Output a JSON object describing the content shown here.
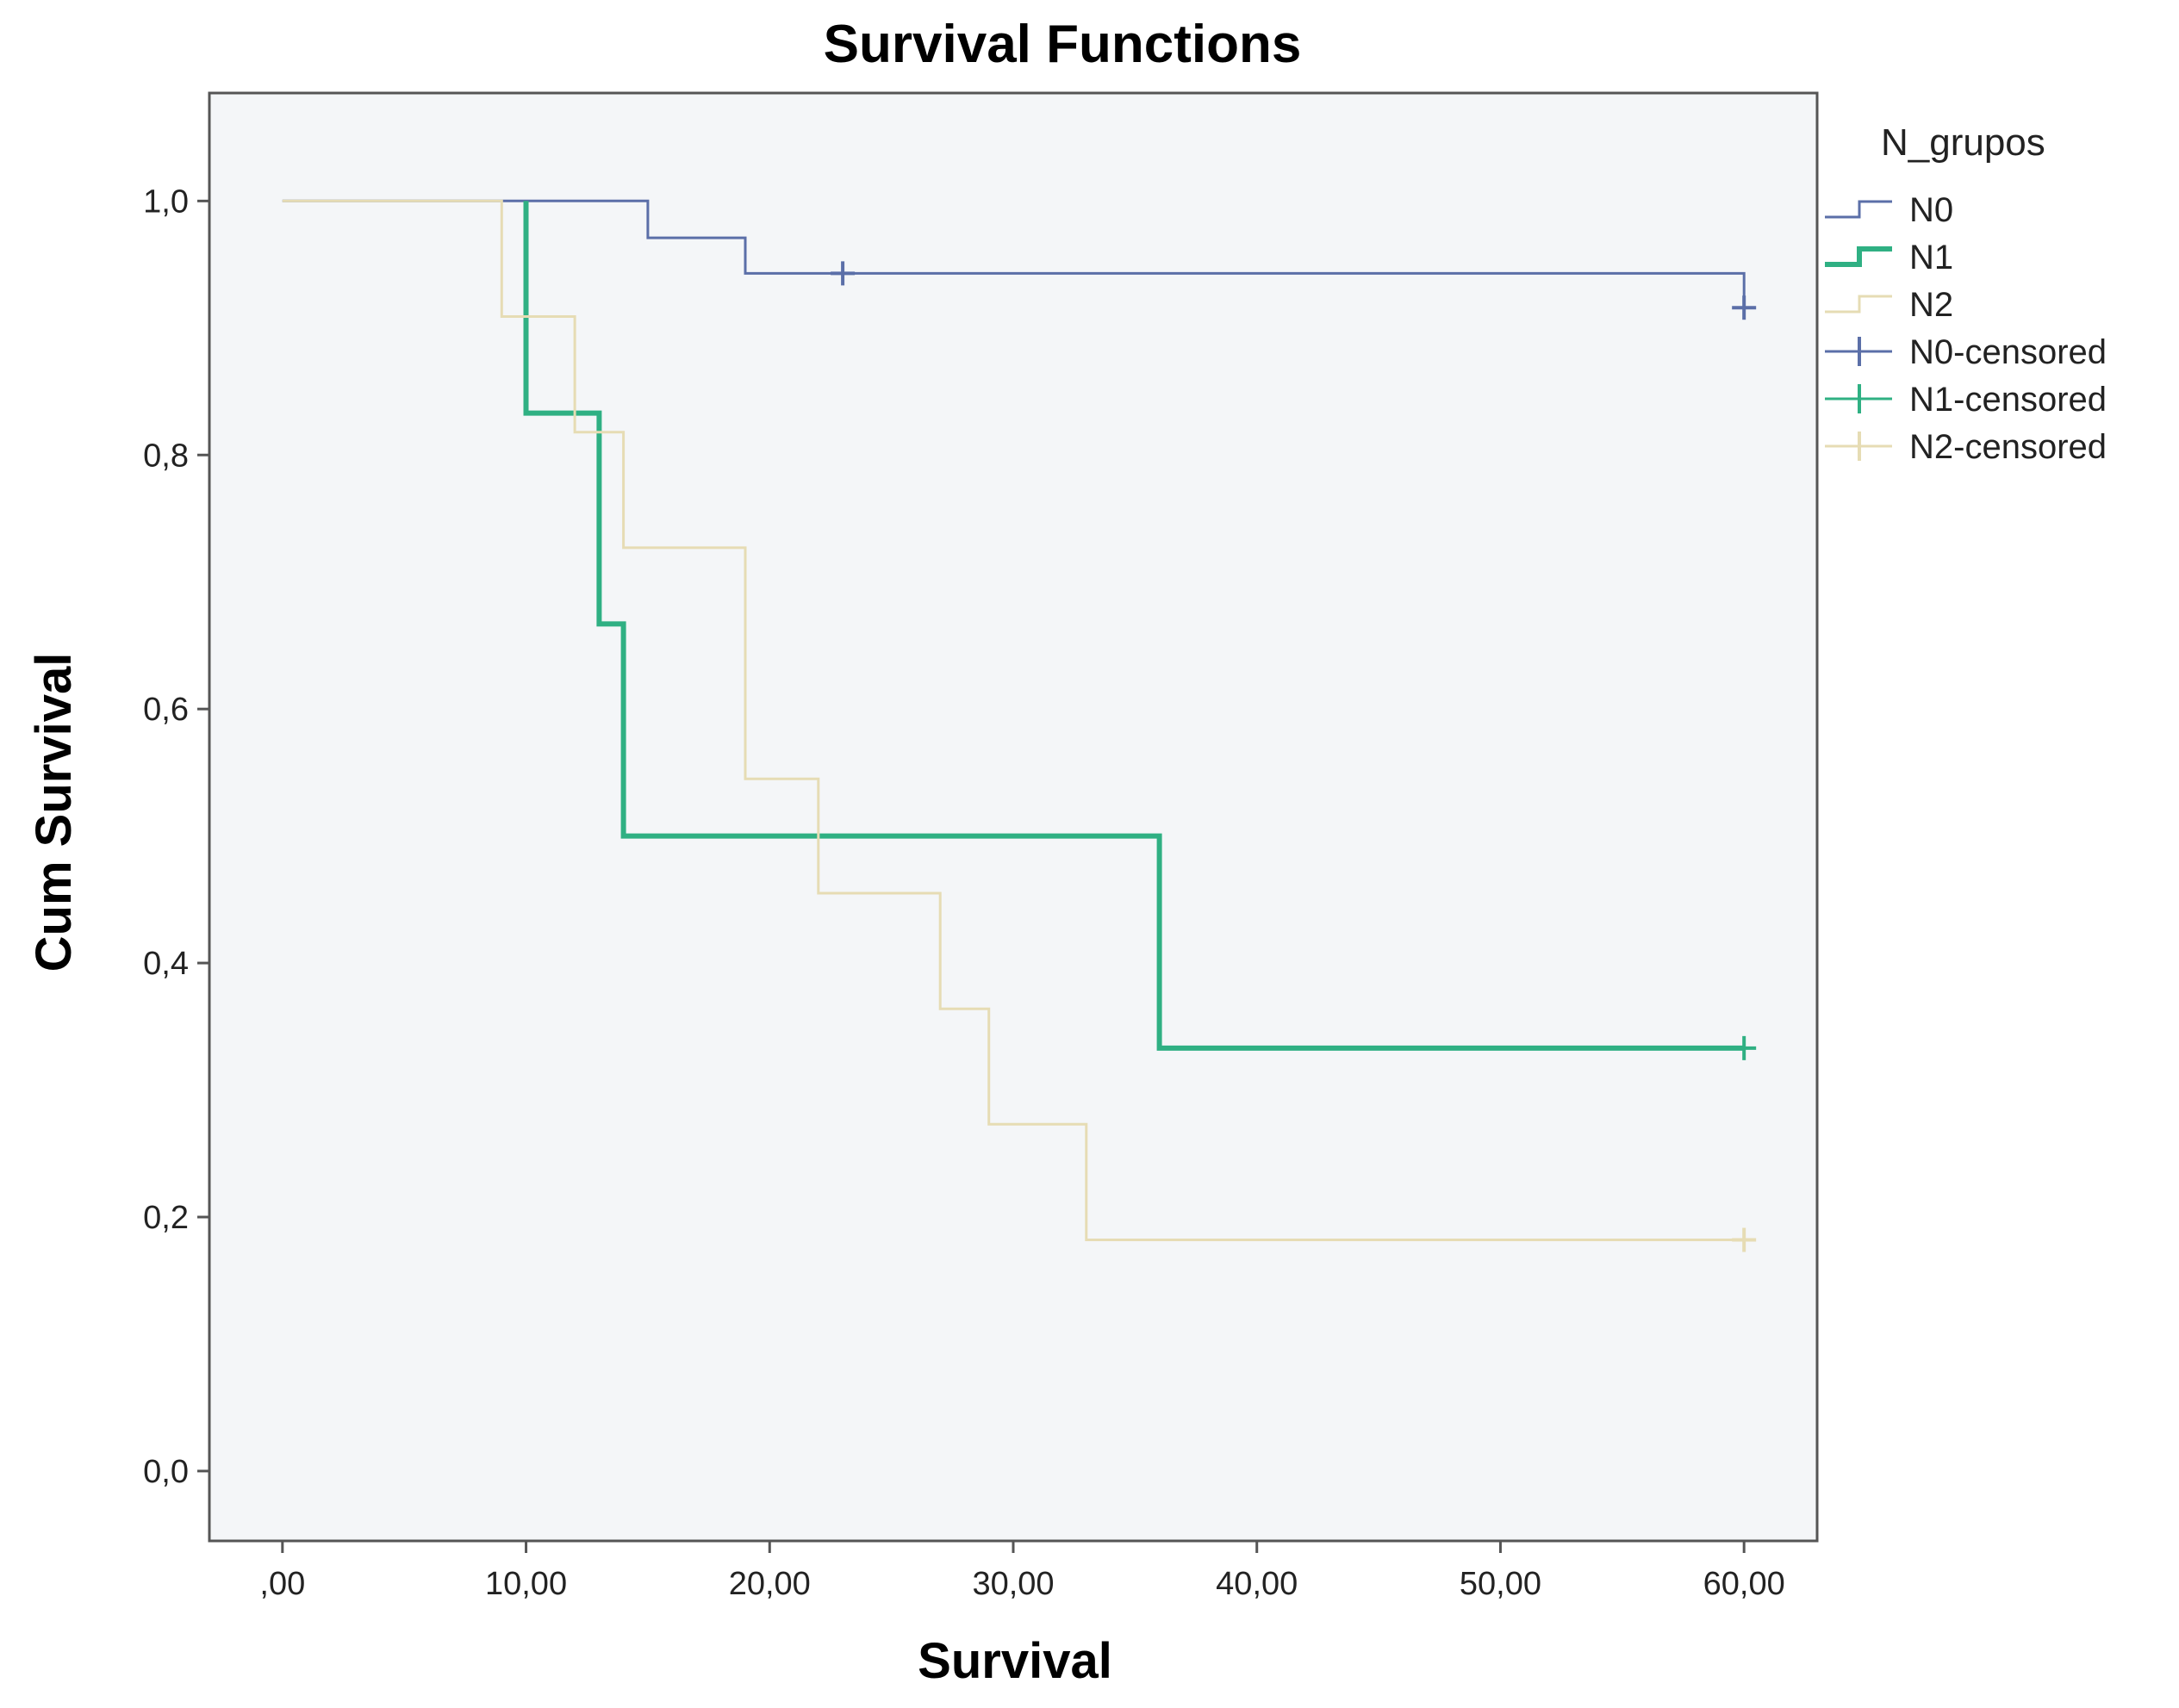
{
  "chart_data": {
    "type": "line",
    "step": true,
    "title": "Survival Functions",
    "xlabel": "Survival",
    "ylabel": "Cum Survival",
    "xlim": [
      -3,
      63
    ],
    "ylim": [
      -0.055,
      1.085
    ],
    "x_ticks": [
      0,
      10,
      20,
      30,
      40,
      50,
      60
    ],
    "x_tick_labels": [
      ",00",
      "10,00",
      "20,00",
      "30,00",
      "40,00",
      "50,00",
      "60,00"
    ],
    "y_ticks": [
      0,
      0.2,
      0.4,
      0.6,
      0.8,
      1.0
    ],
    "y_tick_labels": [
      "0,0",
      "0,2",
      "0,4",
      "0,6",
      "0,8",
      "1,0"
    ],
    "grid": false,
    "legend": {
      "title": "N_grupos",
      "position": "right",
      "entries": [
        "N0",
        "N1",
        "N2",
        "N0-censored",
        "N1-censored",
        "N2-censored"
      ]
    },
    "series": [
      {
        "name": "N0",
        "color": "#5b6fa8",
        "points": [
          [
            0,
            1.0
          ],
          [
            15,
            1.0
          ],
          [
            15,
            0.971
          ],
          [
            19,
            0.971
          ],
          [
            19,
            0.943
          ],
          [
            60,
            0.943
          ],
          [
            60,
            0.916
          ]
        ],
        "censored": [
          [
            23,
            0.943
          ],
          [
            60,
            0.916
          ]
        ]
      },
      {
        "name": "N1",
        "color": "#2fb083",
        "points": [
          [
            10,
            1.0
          ],
          [
            10,
            0.833
          ],
          [
            13,
            0.833
          ],
          [
            13,
            0.667
          ],
          [
            14,
            0.667
          ],
          [
            14,
            0.5
          ],
          [
            36,
            0.5
          ],
          [
            36,
            0.333
          ],
          [
            60,
            0.333
          ]
        ],
        "censored": [
          [
            60,
            0.333
          ]
        ]
      },
      {
        "name": "N2",
        "color": "#e6dcb4",
        "points": [
          [
            0,
            1.0
          ],
          [
            9,
            1.0
          ],
          [
            9,
            0.909
          ],
          [
            12,
            0.909
          ],
          [
            12,
            0.818
          ],
          [
            14,
            0.818
          ],
          [
            14,
            0.727
          ],
          [
            19,
            0.727
          ],
          [
            19,
            0.545
          ],
          [
            22,
            0.545
          ],
          [
            22,
            0.455
          ],
          [
            27,
            0.455
          ],
          [
            27,
            0.364
          ],
          [
            29,
            0.364
          ],
          [
            29,
            0.273
          ],
          [
            33,
            0.273
          ],
          [
            33,
            0.182
          ],
          [
            60,
            0.182
          ]
        ],
        "censored": [
          [
            60,
            0.182
          ]
        ]
      }
    ]
  }
}
